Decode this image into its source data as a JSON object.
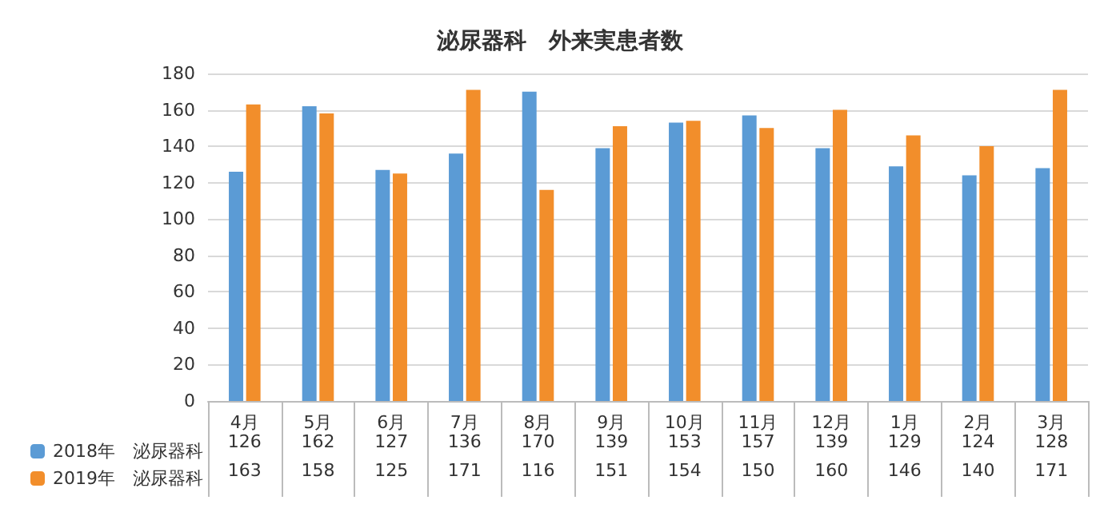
{
  "chart_data": {
    "type": "bar",
    "title": "泌尿器科　外来実患者数",
    "categories": [
      "4月",
      "5月",
      "6月",
      "7月",
      "8月",
      "9月",
      "10月",
      "11月",
      "12月",
      "1月",
      "2月",
      "3月"
    ],
    "series": [
      {
        "name": "2018年　泌尿器科",
        "color": "#5b9bd5",
        "values": [
          126,
          162,
          127,
          136,
          170,
          139,
          153,
          157,
          139,
          129,
          124,
          128
        ]
      },
      {
        "name": "2019年　泌尿器科",
        "color": "#f28e2b",
        "values": [
          163,
          158,
          125,
          171,
          116,
          151,
          154,
          150,
          160,
          146,
          140,
          171
        ]
      }
    ],
    "ylim": [
      0,
      180
    ],
    "yticks": [
      0,
      20,
      40,
      60,
      80,
      100,
      120,
      140,
      160,
      180
    ],
    "grid": "y",
    "legend": "bottom",
    "data_labels": true
  }
}
